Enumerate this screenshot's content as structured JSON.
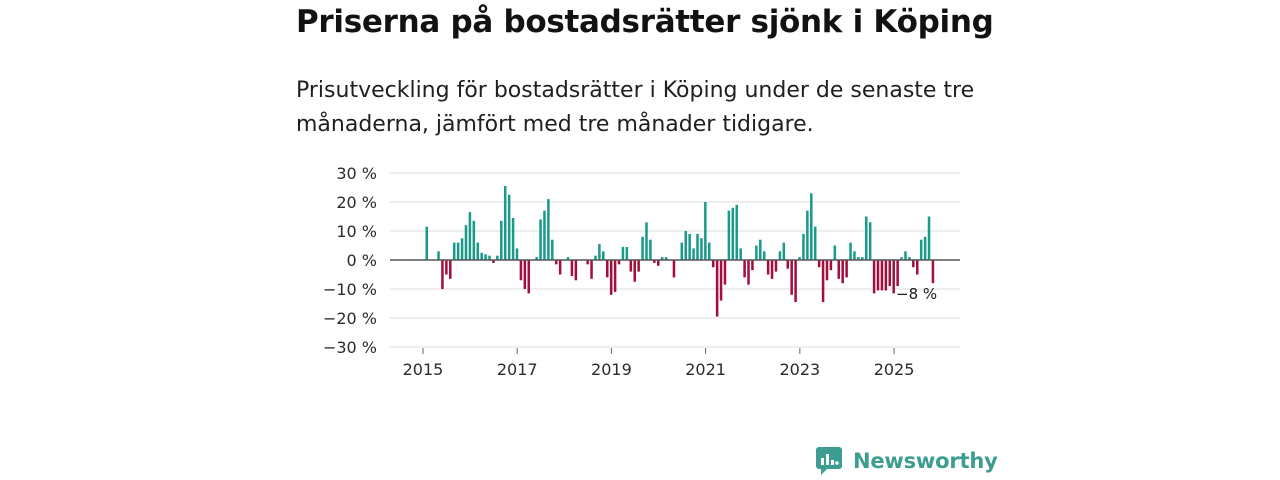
{
  "header": {
    "title": "Priserna på bostadsrätter sjönk i Köping",
    "subtitle": "Prisutveckling för bostadsrätter i Köping under de senaste tre månaderna, jämfört med tre månader tidigare."
  },
  "colors": {
    "positive": "#1a9a8a",
    "negative": "#a30e3d",
    "grid": "#dddddd",
    "zero_line": "#555555",
    "brand": "#3c9d90"
  },
  "chart_data": {
    "type": "bar",
    "title": "Priserna på bostadsrätter sjönk i Köping",
    "xlabel": "",
    "ylabel": "",
    "ylim": [
      -30,
      30
    ],
    "xlim": [
      2014.3,
      2026.4
    ],
    "y_ticks": [
      30,
      20,
      10,
      0,
      -10,
      -20,
      -30
    ],
    "y_tick_labels": [
      "30 %",
      "20 %",
      "10 %",
      "0 %",
      "−10 %",
      "−20 %",
      "−30 %"
    ],
    "x_ticks": [
      2015,
      2017,
      2019,
      2021,
      2023,
      2025
    ],
    "x_tick_labels": [
      "2015",
      "2017",
      "2019",
      "2021",
      "2023",
      "2025"
    ],
    "grid": true,
    "bar_step_years": 0.0833,
    "annotation": {
      "text": "−8 %",
      "x": 2025.83,
      "y": -8
    },
    "series": [
      {
        "name": "Prisutveckling",
        "start": 2015.08,
        "values": [
          11.5,
          null,
          0,
          3,
          -10,
          -5,
          -6.5,
          6,
          6,
          7.5,
          12,
          16.5,
          13.5,
          6,
          2.5,
          2,
          1.5,
          -1,
          1.5,
          13.5,
          25.5,
          22.5,
          14.5,
          4,
          -7,
          -10,
          -11.5,
          0,
          1,
          14,
          17,
          21,
          7,
          -1.5,
          -5,
          null,
          1,
          -5.5,
          -7,
          null,
          0,
          -1.5,
          -6.5,
          1.5,
          5.5,
          3,
          -6,
          -12,
          -11,
          -1.5,
          4.5,
          4.5,
          -4,
          -7.5,
          -4,
          8,
          13,
          7,
          -1,
          -2,
          1,
          1,
          0,
          -6,
          null,
          6,
          10,
          9,
          4,
          9,
          7.5,
          20,
          6,
          -2.5,
          -19.5,
          -14,
          -8.5,
          17,
          18,
          19,
          4,
          -6,
          -8.5,
          -3.5,
          5,
          7,
          3,
          -5,
          -6.5,
          -4,
          3,
          6,
          -3,
          -12,
          -14.5,
          1,
          9,
          17,
          23,
          11.5,
          -2.5,
          -14.5,
          -7,
          -3.5,
          5,
          -6.5,
          -8,
          -6,
          6,
          3,
          1,
          1,
          15,
          13,
          -11.5,
          -10.5,
          -10.5,
          -10.5,
          -9,
          -11.5,
          -9,
          1,
          3,
          1,
          -2.5,
          -5,
          7,
          8,
          15,
          -8
        ]
      }
    ]
  },
  "brand": {
    "name": "Newsworthy",
    "logo_icon": "newsworthy-logo-icon"
  }
}
